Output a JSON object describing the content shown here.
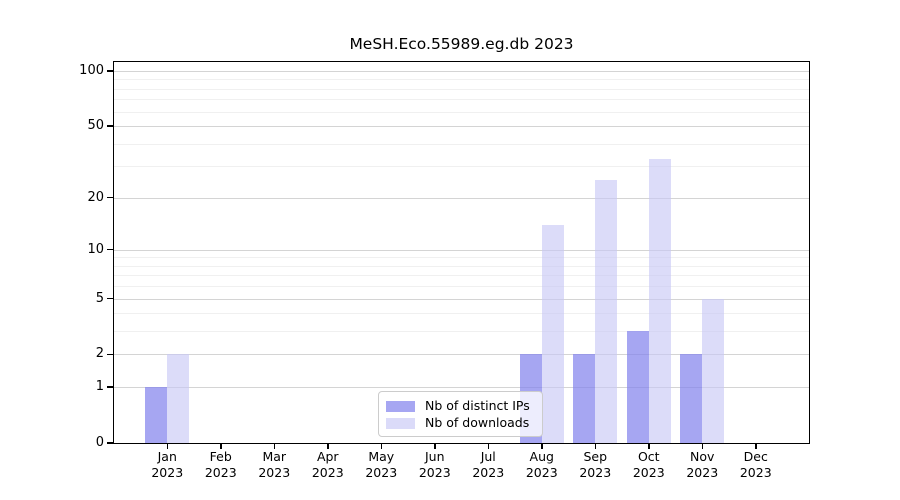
{
  "chart_data": {
    "type": "bar",
    "title": "MeSH.Eco.55989.eg.db 2023",
    "categories": [
      "Jan",
      "Feb",
      "Mar",
      "Apr",
      "May",
      "Jun",
      "Jul",
      "Aug",
      "Sep",
      "Oct",
      "Nov",
      "Dec"
    ],
    "category_year": "2023",
    "series": [
      {
        "name": "Nb of distinct IPs",
        "color": "rgba(132,132,237,0.72)",
        "legend_color": "#a6a6f2",
        "values": [
          1,
          0,
          0,
          0,
          0,
          0,
          0,
          2,
          2,
          3,
          2,
          0
        ]
      },
      {
        "name": "Nb of downloads",
        "color": "rgba(198,198,246,0.62)",
        "legend_color": "#dbdbf9",
        "values": [
          2,
          0,
          0,
          0,
          0,
          0,
          0,
          14,
          25,
          33,
          5,
          0
        ]
      }
    ],
    "y_axis": {
      "scale": "log10(1+y)",
      "ticks": [
        0,
        1,
        2,
        5,
        10,
        20,
        50,
        100
      ],
      "tick_labels": [
        "0",
        "1",
        "2",
        "5",
        "10",
        "20",
        "50",
        "100"
      ],
      "minor_gridlines": [
        3,
        4,
        6,
        7,
        8,
        9,
        30,
        40,
        60,
        70,
        80,
        90
      ],
      "top_value": 112
    },
    "legend_position": "bottom-center",
    "grid": "horizontal",
    "colors": {
      "major_grid": "#d4d4d4",
      "minor_grid": "#f0f0f0",
      "axis": "#000000",
      "background": "#ffffff"
    }
  }
}
